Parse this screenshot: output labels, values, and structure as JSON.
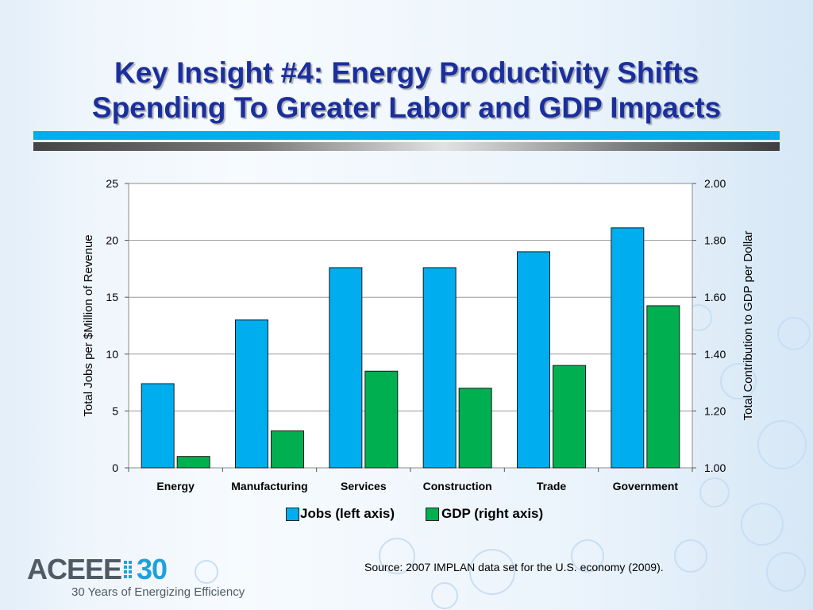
{
  "slide": {
    "title_line1": "Key Insight #4: Energy Productivity Shifts",
    "title_line2": "Spending To Greater Labor and GDP Impacts",
    "source": "Source: 2007 IMPLAN data set for the U.S. economy (2009).",
    "logo_text": "ACEEE",
    "logo_number": "30",
    "logo_tagline": "30 Years of Energizing Efficiency"
  },
  "chart_data": {
    "type": "bar",
    "categories": [
      "Energy",
      "Manufacturing",
      "Services",
      "Construction",
      "Trade",
      "Government"
    ],
    "series": [
      {
        "name": "Jobs (left axis)",
        "axis": "left",
        "values": [
          7.4,
          13.0,
          17.6,
          17.6,
          19.0,
          21.1
        ],
        "color": "#00adef"
      },
      {
        "name": "GDP (right axis)",
        "axis": "right",
        "values": [
          1.04,
          1.13,
          1.34,
          1.28,
          1.36,
          1.57
        ],
        "color": "#00b050"
      }
    ],
    "y_left": {
      "label": "Total Jobs per $Million of Revenue",
      "min": 0,
      "max": 25,
      "ticks": [
        "0",
        "5",
        "10",
        "15",
        "20",
        "25"
      ]
    },
    "y_right": {
      "label": "Total Contribution to GDP per Dollar",
      "min": 1.0,
      "max": 2.0,
      "ticks": [
        "1.00",
        "1.20",
        "1.40",
        "1.60",
        "1.80",
        "2.00"
      ]
    },
    "grid": true,
    "legend": "bottom"
  }
}
